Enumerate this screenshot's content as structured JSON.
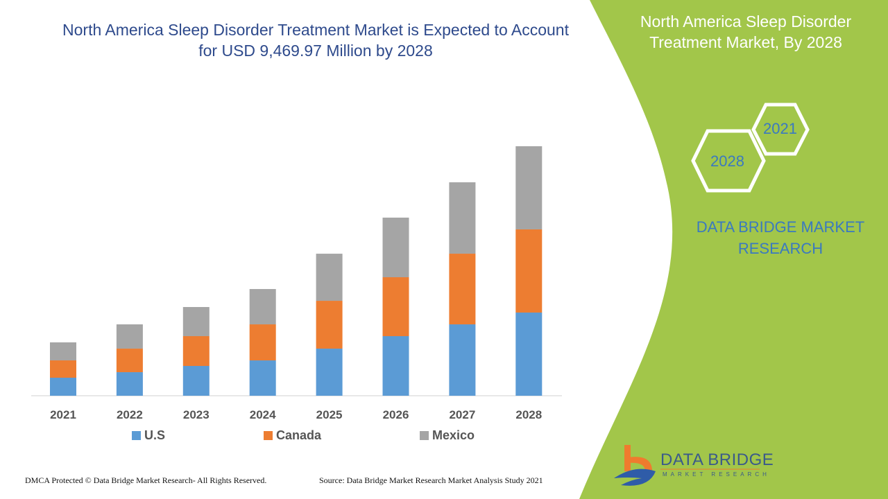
{
  "title": "North America Sleep Disorder Treatment Market is Expected to Account for USD 9,469.97 Million by 2028",
  "side_panel": {
    "title": "North America Sleep Disorder Treatment Market, By 2028",
    "hex_years": [
      "2021",
      "2028"
    ],
    "brand": "DATA BRIDGE MARKET RESEARCH",
    "logo_text": "DATA BRIDGE",
    "logo_sub": "MARKET RESEARCH",
    "background_color": "#a2c64a"
  },
  "footer": {
    "dmca": "DMCA Protected © Data Bridge Market Research- All Rights Reserved.",
    "source": "Source: Data Bridge Market Research Market Analysis Study 2021"
  },
  "chart_data": {
    "type": "bar",
    "stacked": true,
    "categories": [
      "2021",
      "2022",
      "2023",
      "2024",
      "2025",
      "2026",
      "2027",
      "2028"
    ],
    "series": [
      {
        "name": "U.S",
        "color": "#5b9bd5",
        "values": [
          684,
          894,
          1131,
          1341,
          1788,
          2262,
          2709,
          3157
        ]
      },
      {
        "name": "Canada",
        "color": "#ed7d31",
        "values": [
          658,
          894,
          1131,
          1368,
          1815,
          2236,
          2683,
          3157
        ]
      },
      {
        "name": "Mexico",
        "color": "#a5a5a5",
        "values": [
          684,
          921,
          1105,
          1341,
          1788,
          2262,
          2709,
          3156
        ]
      }
    ],
    "ylim": [
      0,
      9470
    ],
    "grid": false,
    "legend": "bottom"
  }
}
